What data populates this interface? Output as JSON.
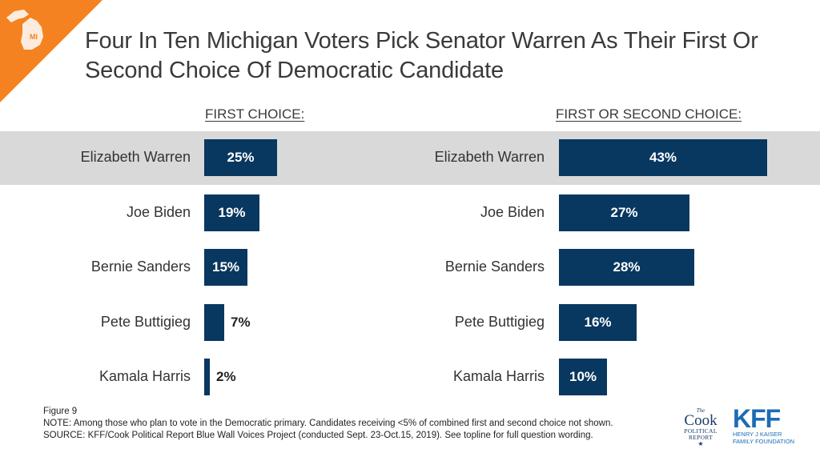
{
  "badge": {
    "text": "MI",
    "color": "#f58220"
  },
  "title": "Four In Ten Michigan Voters Pick Senator Warren As Their First Or Second Choice Of Democratic Candidate",
  "colors": {
    "bar": "#083760",
    "highlight_row": "#d9d9d9",
    "accent": "#f58220"
  },
  "chart_data": [
    {
      "type": "bar",
      "orientation": "horizontal",
      "title": "FIRST CHOICE:",
      "categories": [
        "Elizabeth Warren",
        "Joe Biden",
        "Bernie Sanders",
        "Pete Buttigieg",
        "Kamala Harris"
      ],
      "values": [
        25,
        19,
        15,
        7,
        2
      ],
      "labels": [
        "25%",
        "19%",
        "15%",
        "7%",
        "2%"
      ],
      "highlighted_category": "Elizabeth Warren",
      "xlim": [
        0,
        43
      ]
    },
    {
      "type": "bar",
      "orientation": "horizontal",
      "title": "FIRST OR SECOND CHOICE:",
      "categories": [
        "Elizabeth Warren",
        "Joe Biden",
        "Bernie Sanders",
        "Pete Buttigieg",
        "Kamala Harris"
      ],
      "values": [
        43,
        27,
        28,
        16,
        10
      ],
      "labels": [
        "43%",
        "27%",
        "28%",
        "16%",
        "10%"
      ],
      "highlighted_category": "Elizabeth Warren",
      "xlim": [
        0,
        43
      ]
    }
  ],
  "footer": {
    "figure": "Figure 9",
    "note": "NOTE: Among those who plan to vote in the Democratic primary. Candidates receiving <5% of combined first and second choice not shown.",
    "source": "SOURCE: KFF/Cook Political Report Blue Wall Voices Project (conducted Sept. 23-Oct.15, 2019). See topline for full question wording."
  },
  "logos": {
    "cook": {
      "the": "The",
      "name": "Cook",
      "sub1": "POLITICAL",
      "sub2": "REPORT"
    },
    "kff": {
      "name": "KFF",
      "sub1": "HENRY J KAISER",
      "sub2": "FAMILY FOUNDATION"
    }
  }
}
